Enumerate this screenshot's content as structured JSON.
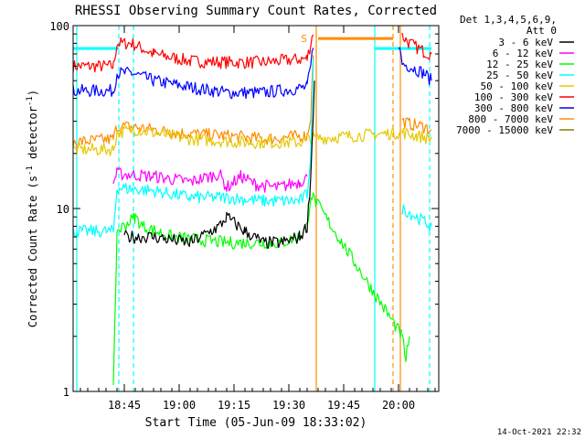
{
  "chart_data": {
    "type": "line",
    "title": "RHESSI Observing Summary Count Rates, Corrected",
    "xlabel": "Start Time (05-Jun-09 18:33:02)",
    "ylabel_main": "Corrected Count Rate (s",
    "ylabel_sup1": "-1",
    "ylabel_mid": " detector",
    "ylabel_sup2": "-1",
    "ylabel_end": ")",
    "yscale": "log",
    "ylim": [
      1,
      100
    ],
    "yticks": [
      {
        "value": 1,
        "label": "1"
      },
      {
        "value": 10,
        "label": "10"
      },
      {
        "value": 100,
        "label": "100"
      }
    ],
    "xlim_min": [
      -2,
      98
    ],
    "xticks": [
      {
        "min": 12,
        "label": "18:45"
      },
      {
        "min": 27,
        "label": "19:00"
      },
      {
        "min": 42,
        "label": "19:15"
      },
      {
        "min": 57,
        "label": "19:30"
      },
      {
        "min": 72,
        "label": "19:45"
      },
      {
        "min": 87,
        "label": "20:00"
      }
    ],
    "legend": {
      "placement": "right",
      "header": [
        "Det 1,3,4,5,6,9,",
        "Att 0"
      ],
      "entries": [
        {
          "label": "3 - 6 keV",
          "color": "#000000"
        },
        {
          "label": "6 - 12 keV",
          "color": "#ff00ff"
        },
        {
          "label": "12 - 25 keV",
          "color": "#00ff00"
        },
        {
          "label": "25 - 50 keV",
          "color": "#00ffff"
        },
        {
          "label": "50 - 100 keV",
          "color": "#e6c800"
        },
        {
          "label": "100 - 300 keV",
          "color": "#ff0000"
        },
        {
          "label": "300 - 800 keV",
          "color": "#0000ff"
        },
        {
          "label": "800 - 7000 keV",
          "color": "#ff8c00"
        },
        {
          "label": "7000 - 15000 keV",
          "color": "#808000"
        }
      ]
    },
    "series": [
      {
        "name": "100 - 300 keV",
        "color": "#ff0000",
        "points": [
          [
            -2,
            60
          ],
          [
            9,
            60
          ],
          [
            10,
            80
          ],
          [
            14,
            80
          ],
          [
            20,
            70
          ],
          [
            30,
            64
          ],
          [
            40,
            63
          ],
          [
            50,
            63
          ],
          [
            62,
            66
          ],
          [
            63,
            80
          ],
          [
            64,
            100
          ],
          [
            88,
            88
          ],
          [
            90,
            80
          ],
          [
            94,
            72
          ],
          [
            96,
            70
          ]
        ]
      },
      {
        "name": "300 - 800 keV",
        "color": "#0000ff",
        "points": [
          [
            -2,
            44
          ],
          [
            9,
            44
          ],
          [
            10,
            55
          ],
          [
            14,
            55
          ],
          [
            20,
            50
          ],
          [
            30,
            46
          ],
          [
            40,
            43
          ],
          [
            50,
            43
          ],
          [
            62,
            46
          ],
          [
            63,
            60
          ],
          [
            64,
            90
          ],
          [
            87,
            80
          ],
          [
            88,
            62
          ],
          [
            90,
            60
          ],
          [
            94,
            55
          ],
          [
            96,
            50
          ]
        ]
      },
      {
        "name": "800 - 7000 keV",
        "color": "#ff8c00",
        "points": [
          [
            -2,
            23
          ],
          [
            9,
            24
          ],
          [
            10,
            28
          ],
          [
            14,
            28
          ],
          [
            20,
            27
          ],
          [
            25,
            26
          ],
          [
            40,
            25
          ],
          [
            50,
            24
          ],
          [
            62,
            25
          ],
          [
            63,
            32
          ],
          [
            64,
            100
          ],
          [
            88,
            30
          ],
          [
            90,
            29
          ],
          [
            94,
            28
          ],
          [
            96,
            27
          ]
        ]
      },
      {
        "name": "50 - 100 keV",
        "color": "#e6c800",
        "points": [
          [
            -2,
            21
          ],
          [
            9,
            21
          ],
          [
            10,
            26
          ],
          [
            15,
            27
          ],
          [
            30,
            24
          ],
          [
            45,
            23
          ],
          [
            60,
            23
          ],
          [
            62,
            24
          ],
          [
            88,
            26
          ],
          [
            92,
            25
          ],
          [
            96,
            24
          ]
        ]
      },
      {
        "name": "6 - 12 keV",
        "color": "#ff00ff",
        "points": [
          [
            9,
            14
          ],
          [
            10,
            15.5
          ],
          [
            20,
            15
          ],
          [
            30,
            14
          ],
          [
            38,
            15.5
          ],
          [
            40,
            13
          ],
          [
            44,
            15
          ],
          [
            48,
            13.5
          ],
          [
            54,
            13
          ],
          [
            60,
            14
          ],
          [
            62,
            15
          ]
        ]
      },
      {
        "name": "25 - 50 keV",
        "color": "#00ffff",
        "points": [
          [
            -2,
            7.5
          ],
          [
            9,
            7.5
          ],
          [
            10,
            13
          ],
          [
            20,
            12.5
          ],
          [
            30,
            11.5
          ],
          [
            40,
            11.5
          ],
          [
            50,
            11
          ],
          [
            60,
            11
          ],
          [
            62,
            12
          ],
          [
            63,
            20
          ],
          [
            64,
            100
          ],
          [
            88,
            10
          ],
          [
            92,
            9
          ],
          [
            96,
            8
          ]
        ]
      },
      {
        "name": "12 - 25 keV",
        "color": "#00ff00",
        "points": [
          [
            9,
            1
          ],
          [
            10,
            7.5
          ],
          [
            15,
            9
          ],
          [
            17,
            8
          ],
          [
            25,
            7
          ],
          [
            40,
            6.5
          ],
          [
            50,
            6.5
          ],
          [
            55,
            6.5
          ],
          [
            60,
            7
          ],
          [
            62,
            8
          ],
          [
            63,
            12
          ],
          [
            88,
            2
          ],
          [
            89,
            1.5
          ],
          [
            90,
            2
          ]
        ]
      },
      {
        "name": "3 - 6 keV",
        "color": "#000000",
        "points": [
          [
            12,
            7
          ],
          [
            20,
            7
          ],
          [
            30,
            6.5
          ],
          [
            38,
            8
          ],
          [
            40,
            9
          ],
          [
            45,
            7.5
          ],
          [
            50,
            6.5
          ],
          [
            55,
            6.5
          ],
          [
            60,
            7
          ],
          [
            62,
            8
          ],
          [
            63,
            15
          ],
          [
            64,
            50
          ]
        ]
      }
    ],
    "vlines": [
      {
        "min": -1,
        "color": "#00ffff",
        "style": "solid"
      },
      {
        "min": 10.5,
        "color": "#00ffff",
        "style": "dashed"
      },
      {
        "min": 14.5,
        "color": "#00ffff",
        "style": "dashed"
      },
      {
        "min": 64.5,
        "color": "#ff8c00",
        "style": "solid"
      },
      {
        "min": 80.5,
        "color": "#00ffff",
        "style": "solid"
      },
      {
        "min": 85.5,
        "color": "#ff8c00",
        "style": "dashed"
      },
      {
        "min": 87.5,
        "color": "#ff8c00",
        "style": "solid"
      },
      {
        "min": 95.5,
        "color": "#00ffff",
        "style": "dashed"
      }
    ],
    "spans": [
      {
        "from": -2,
        "to": 10.5,
        "value": 75,
        "color": "#00ffff"
      },
      {
        "from": 80.5,
        "to": 96,
        "value": 75,
        "color": "#00ffff"
      },
      {
        "from": 65,
        "to": 85.5,
        "value": 85,
        "color": "#ff8c00"
      }
    ],
    "annotations": [
      {
        "text": "S",
        "min": 63,
        "value": 85,
        "color": "#ff8c00"
      }
    ],
    "footer": "14-Oct-2021 22:32"
  }
}
